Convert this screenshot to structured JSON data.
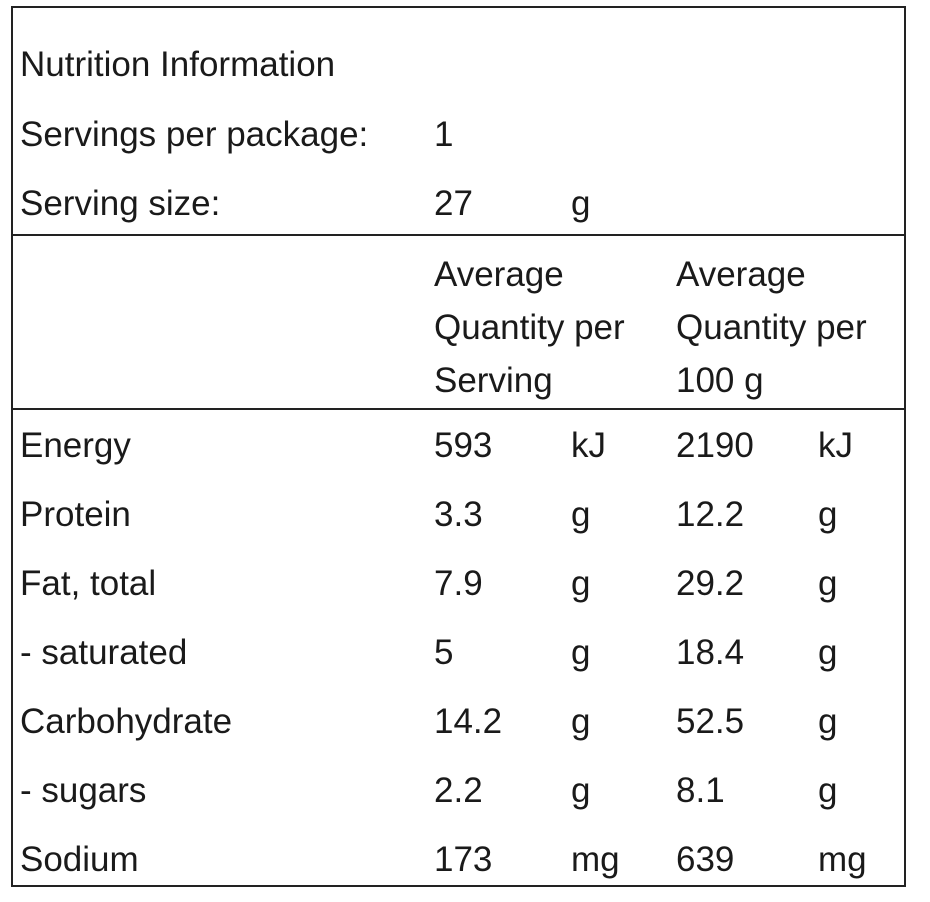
{
  "panel": {
    "title": "Nutrition Information",
    "servings_label": "Servings per package:",
    "servings_value": "1",
    "serving_size_label": "Serving size:",
    "serving_size_value": "27",
    "serving_size_unit": "g",
    "col_per_serving": "Average\nQuantity per\nServing",
    "col_per_100": "Average\nQuantity per\n100 g"
  },
  "rows": [
    {
      "label": "Energy",
      "serving": "593",
      "serving_unit": "kJ",
      "per100": "2190",
      "per100_unit": "kJ"
    },
    {
      "label": "Protein",
      "serving": "3.3",
      "serving_unit": "g",
      "per100": "12.2",
      "per100_unit": "g"
    },
    {
      "label": "Fat, total",
      "serving": "7.9",
      "serving_unit": "g",
      "per100": "29.2",
      "per100_unit": "g"
    },
    {
      "label": "- saturated",
      "serving": "5",
      "serving_unit": "g",
      "per100": "18.4",
      "per100_unit": "g"
    },
    {
      "label": "Carbohydrate",
      "serving": "14.2",
      "serving_unit": "g",
      "per100": "52.5",
      "per100_unit": "g"
    },
    {
      "label": "- sugars",
      "serving": "2.2",
      "serving_unit": "g",
      "per100": "8.1",
      "per100_unit": "g"
    },
    {
      "label": "Sodium",
      "serving": "173",
      "serving_unit": "mg",
      "per100": "639",
      "per100_unit": "mg"
    }
  ]
}
